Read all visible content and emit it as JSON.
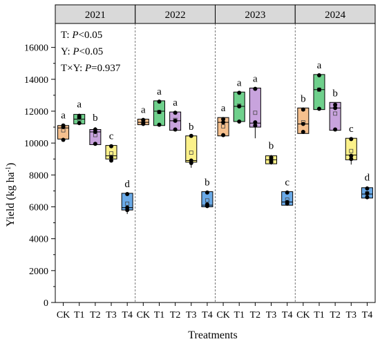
{
  "chart_data": {
    "type": "box",
    "xlabel": "Treatments",
    "ylabel_main": "Yield (kg ha",
    "ylabel_sup": "-1",
    "ylabel_end": ")",
    "ylim": [
      0,
      17500
    ],
    "yticks": [
      0,
      2000,
      4000,
      6000,
      8000,
      10000,
      12000,
      14000,
      16000
    ],
    "grid": false,
    "treatments": [
      "CK",
      "T1",
      "T2",
      "T3",
      "T4"
    ],
    "stats_lines": [
      {
        "prefix": "T:  ",
        "italic": "P",
        "suffix": "<0.05"
      },
      {
        "prefix": "Y:  ",
        "italic": "P",
        "suffix": "<0.05"
      },
      {
        "prefix": "T×Y:  ",
        "italic": "P",
        "suffix": "=0.937"
      }
    ],
    "colors": {
      "CK": "#f6c08e",
      "T1": "#6fd08c",
      "T2": "#c8a3dd",
      "T3": "#fbf18a",
      "T4": "#6aaae8",
      "header": "#d9d9d9"
    },
    "panels": [
      {
        "year": "2021",
        "boxes": [
          {
            "treatment": "CK",
            "q1": 10250,
            "q3": 11100,
            "median": 10950,
            "mean": 10800,
            "whisker_low": 10100,
            "whisker_high": 11150,
            "points": [
              10200,
              11000,
              11100
            ],
            "letter": "a"
          },
          {
            "treatment": "T1",
            "q1": 11200,
            "q3": 11800,
            "median": 11500,
            "mean": 11500,
            "whisker_low": 11200,
            "whisker_high": 11850,
            "points": [
              11250,
              11600,
              11700
            ],
            "letter": "a"
          },
          {
            "treatment": "T2",
            "q1": 9900,
            "q3": 10850,
            "median": 10700,
            "mean": 10500,
            "whisker_low": 9900,
            "whisker_high": 11000,
            "points": [
              9950,
              10700,
              10850
            ],
            "letter": "b"
          },
          {
            "treatment": "T3",
            "q1": 9000,
            "q3": 9850,
            "median": 9200,
            "mean": 9350,
            "whisker_low": 8800,
            "whisker_high": 9850,
            "points": [
              8900,
              9100,
              9800
            ],
            "letter": "c"
          },
          {
            "treatment": "T4",
            "q1": 5800,
            "q3": 6850,
            "median": 5950,
            "mean": 6200,
            "whisker_low": 5550,
            "whisker_high": 6850,
            "points": [
              5800,
              5950,
              6800
            ],
            "letter": "d"
          }
        ]
      },
      {
        "year": "2022",
        "boxes": [
          {
            "treatment": "CK",
            "q1": 11150,
            "q3": 11500,
            "median": 11300,
            "mean": 11350,
            "whisker_low": 11150,
            "whisker_high": 11500,
            "points": [
              11200,
              11250,
              11450
            ],
            "letter": "a"
          },
          {
            "treatment": "T1",
            "q1": 11100,
            "q3": 12650,
            "median": 12000,
            "mean": 11950,
            "whisker_low": 11100,
            "whisker_high": 12650,
            "points": [
              11150,
              11950,
              12600
            ],
            "letter": "a"
          },
          {
            "treatment": "T2",
            "q1": 10800,
            "q3": 11950,
            "median": 11400,
            "mean": 11450,
            "whisker_low": 10800,
            "whisker_high": 11950,
            "points": [
              10850,
              11400,
              11900
            ],
            "letter": "a"
          },
          {
            "treatment": "T3",
            "q1": 8800,
            "q3": 10450,
            "median": 8900,
            "mean": 9400,
            "whisker_low": 8450,
            "whisker_high": 10450,
            "points": [
              8750,
              8900,
              10450
            ],
            "letter": "b"
          },
          {
            "treatment": "T4",
            "q1": 6000,
            "q3": 6950,
            "median": 6100,
            "mean": 6400,
            "whisker_low": 5950,
            "whisker_high": 6950,
            "points": [
              6050,
              6150,
              6900
            ],
            "letter": "b"
          }
        ]
      },
      {
        "year": "2023",
        "boxes": [
          {
            "treatment": "CK",
            "q1": 10450,
            "q3": 11600,
            "median": 11300,
            "mean": 11050,
            "whisker_low": 10450,
            "whisker_high": 11600,
            "points": [
              10500,
              11300,
              11500
            ],
            "letter": "a"
          },
          {
            "treatment": "T1",
            "q1": 11350,
            "q3": 13200,
            "median": 12300,
            "mean": 12350,
            "whisker_low": 11300,
            "whisker_high": 13200,
            "points": [
              11350,
              12300,
              13150
            ],
            "letter": "a"
          },
          {
            "treatment": "T2",
            "q1": 11000,
            "q3": 13450,
            "median": 11250,
            "mean": 11900,
            "whisker_low": 10300,
            "whisker_high": 13450,
            "points": [
              11100,
              11300,
              13400
            ],
            "letter": "a"
          },
          {
            "treatment": "T3",
            "q1": 8700,
            "q3": 9200,
            "median": 8950,
            "mean": 8950,
            "whisker_low": 8650,
            "whisker_high": 9250,
            "points": [
              8800,
              8950,
              9100
            ],
            "letter": "b"
          },
          {
            "treatment": "T4",
            "q1": 6100,
            "q3": 6950,
            "median": 6300,
            "mean": 6450,
            "whisker_low": 6100,
            "whisker_high": 6950,
            "points": [
              6200,
              6300,
              6900
            ],
            "letter": "c"
          }
        ]
      },
      {
        "year": "2024",
        "boxes": [
          {
            "treatment": "CK",
            "q1": 10600,
            "q3": 12200,
            "median": 11200,
            "mean": 11300,
            "whisker_low": 10600,
            "whisker_high": 12200,
            "points": [
              10700,
              11200,
              12100
            ],
            "letter": "b"
          },
          {
            "treatment": "T1",
            "q1": 12100,
            "q3": 14300,
            "median": 13350,
            "mean": 13350,
            "whisker_low": 12100,
            "whisker_high": 14300,
            "points": [
              12150,
              13350,
              14250
            ],
            "letter": "a"
          },
          {
            "treatment": "T2",
            "q1": 10800,
            "q3": 12550,
            "median": 12200,
            "mean": 11850,
            "whisker_low": 10800,
            "whisker_high": 12550,
            "points": [
              10850,
              12200,
              12400
            ],
            "letter": "b"
          },
          {
            "treatment": "T3",
            "q1": 8950,
            "q3": 10300,
            "median": 9250,
            "mean": 9500,
            "whisker_low": 8650,
            "whisker_high": 10300,
            "points": [
              9000,
              9200,
              10250
            ],
            "letter": "c"
          },
          {
            "treatment": "T4",
            "q1": 6550,
            "q3": 7200,
            "median": 6800,
            "mean": 6850,
            "whisker_low": 6550,
            "whisker_high": 7250,
            "points": [
              6600,
              6850,
              7150
            ],
            "letter": "d"
          }
        ]
      }
    ]
  }
}
